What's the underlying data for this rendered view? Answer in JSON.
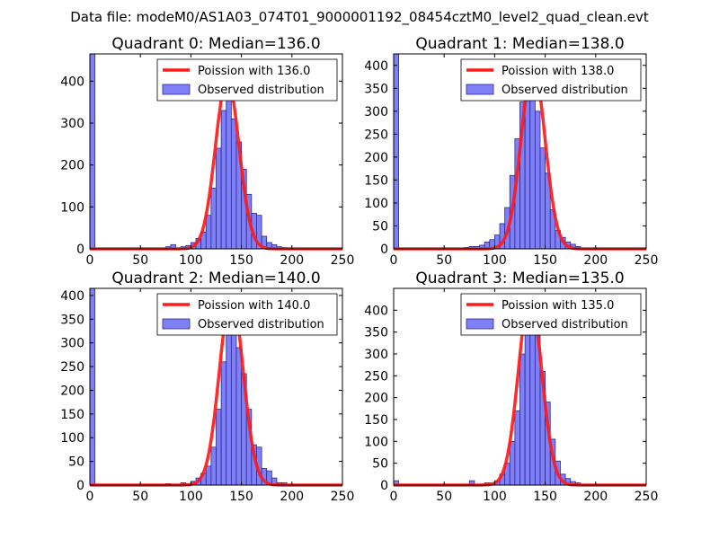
{
  "figure": {
    "suptitle": "Data file: modeM0/AS1A03_074T01_9000001192_08454cztM0_level2_quad_clean.evt"
  },
  "chart_data": [
    {
      "type": "bar",
      "title": "Quadrant 0: Median=136.0",
      "xlim": [
        0,
        250
      ],
      "ylim": [
        0,
        465
      ],
      "xticks": [
        0,
        50,
        100,
        150,
        200,
        250
      ],
      "yticks": [
        0,
        100,
        200,
        300,
        400
      ],
      "bin_width": 5,
      "bins": [
        {
          "x": 0,
          "y": 465
        },
        {
          "x": 75,
          "y": 5
        },
        {
          "x": 80,
          "y": 10
        },
        {
          "x": 90,
          "y": 5
        },
        {
          "x": 95,
          "y": 8
        },
        {
          "x": 100,
          "y": 15
        },
        {
          "x": 105,
          "y": 25
        },
        {
          "x": 110,
          "y": 40
        },
        {
          "x": 115,
          "y": 80
        },
        {
          "x": 120,
          "y": 145
        },
        {
          "x": 125,
          "y": 240
        },
        {
          "x": 130,
          "y": 330
        },
        {
          "x": 135,
          "y": 395
        },
        {
          "x": 140,
          "y": 310
        },
        {
          "x": 145,
          "y": 255
        },
        {
          "x": 150,
          "y": 190
        },
        {
          "x": 155,
          "y": 130
        },
        {
          "x": 160,
          "y": 85
        },
        {
          "x": 165,
          "y": 80
        },
        {
          "x": 170,
          "y": 30
        },
        {
          "x": 175,
          "y": 15
        },
        {
          "x": 180,
          "y": 10
        },
        {
          "x": 185,
          "y": 5
        },
        {
          "x": 190,
          "y": 3
        }
      ],
      "poisson": {
        "mean": 136.0,
        "peak": 405
      },
      "legend": {
        "placement": "top-right",
        "entries": [
          "Poission with 136.0",
          "Observed distribution"
        ]
      }
    },
    {
      "type": "bar",
      "title": "Quadrant 1: Median=138.0",
      "xlim": [
        0,
        250
      ],
      "ylim": [
        0,
        425
      ],
      "xticks": [
        0,
        50,
        100,
        150,
        200,
        250
      ],
      "yticks": [
        0,
        50,
        100,
        150,
        200,
        250,
        300,
        350,
        400
      ],
      "bin_width": 5,
      "bins": [
        {
          "x": 0,
          "y": 425
        },
        {
          "x": 70,
          "y": 3
        },
        {
          "x": 75,
          "y": 5
        },
        {
          "x": 80,
          "y": 5
        },
        {
          "x": 85,
          "y": 8
        },
        {
          "x": 90,
          "y": 15
        },
        {
          "x": 95,
          "y": 20
        },
        {
          "x": 100,
          "y": 30
        },
        {
          "x": 105,
          "y": 55
        },
        {
          "x": 110,
          "y": 90
        },
        {
          "x": 115,
          "y": 160
        },
        {
          "x": 120,
          "y": 240
        },
        {
          "x": 125,
          "y": 320
        },
        {
          "x": 130,
          "y": 390
        },
        {
          "x": 135,
          "y": 380
        },
        {
          "x": 140,
          "y": 300
        },
        {
          "x": 145,
          "y": 220
        },
        {
          "x": 150,
          "y": 165
        },
        {
          "x": 155,
          "y": 85
        },
        {
          "x": 160,
          "y": 40
        },
        {
          "x": 165,
          "y": 25
        },
        {
          "x": 170,
          "y": 15
        },
        {
          "x": 175,
          "y": 10
        },
        {
          "x": 180,
          "y": 5
        }
      ],
      "poisson": {
        "mean": 138.0,
        "peak": 400
      },
      "legend": {
        "placement": "top-right",
        "entries": [
          "Poission with 138.0",
          "Observed distribution"
        ]
      }
    },
    {
      "type": "bar",
      "title": "Quadrant 2: Median=140.0",
      "xlim": [
        0,
        250
      ],
      "ylim": [
        0,
        415
      ],
      "xticks": [
        0,
        50,
        100,
        150,
        200,
        250
      ],
      "yticks": [
        0,
        50,
        100,
        150,
        200,
        250,
        300,
        350,
        400
      ],
      "bin_width": 5,
      "bins": [
        {
          "x": 0,
          "y": 415
        },
        {
          "x": 75,
          "y": 3
        },
        {
          "x": 90,
          "y": 5
        },
        {
          "x": 100,
          "y": 8
        },
        {
          "x": 105,
          "y": 15
        },
        {
          "x": 110,
          "y": 25
        },
        {
          "x": 115,
          "y": 40
        },
        {
          "x": 120,
          "y": 80
        },
        {
          "x": 125,
          "y": 160
        },
        {
          "x": 130,
          "y": 260
        },
        {
          "x": 135,
          "y": 370
        },
        {
          "x": 140,
          "y": 390
        },
        {
          "x": 145,
          "y": 290
        },
        {
          "x": 150,
          "y": 235
        },
        {
          "x": 155,
          "y": 160
        },
        {
          "x": 160,
          "y": 85
        },
        {
          "x": 165,
          "y": 80
        },
        {
          "x": 170,
          "y": 35
        },
        {
          "x": 175,
          "y": 30
        },
        {
          "x": 180,
          "y": 15
        },
        {
          "x": 185,
          "y": 5
        },
        {
          "x": 190,
          "y": 5
        }
      ],
      "poisson": {
        "mean": 140.0,
        "peak": 397
      },
      "legend": {
        "placement": "top-right",
        "entries": [
          "Poission with 140.0",
          "Observed distribution"
        ]
      }
    },
    {
      "type": "bar",
      "title": "Quadrant 3: Median=135.0",
      "xlim": [
        0,
        250
      ],
      "ylim": [
        0,
        450
      ],
      "xticks": [
        0,
        50,
        100,
        150,
        200,
        250
      ],
      "yticks": [
        0,
        50,
        100,
        150,
        200,
        250,
        300,
        350,
        400
      ],
      "bin_width": 5,
      "bins": [
        {
          "x": 0,
          "y": 10
        },
        {
          "x": 75,
          "y": 10
        },
        {
          "x": 90,
          "y": 5
        },
        {
          "x": 95,
          "y": 5
        },
        {
          "x": 100,
          "y": 10
        },
        {
          "x": 105,
          "y": 25
        },
        {
          "x": 110,
          "y": 50
        },
        {
          "x": 115,
          "y": 100
        },
        {
          "x": 120,
          "y": 170
        },
        {
          "x": 125,
          "y": 300
        },
        {
          "x": 130,
          "y": 400
        },
        {
          "x": 135,
          "y": 430
        },
        {
          "x": 140,
          "y": 355
        },
        {
          "x": 145,
          "y": 260
        },
        {
          "x": 150,
          "y": 190
        },
        {
          "x": 155,
          "y": 105
        },
        {
          "x": 160,
          "y": 55
        },
        {
          "x": 165,
          "y": 25
        },
        {
          "x": 170,
          "y": 15
        },
        {
          "x": 175,
          "y": 8
        },
        {
          "x": 180,
          "y": 5
        }
      ],
      "poisson": {
        "mean": 135.0,
        "peak": 430
      },
      "legend": {
        "placement": "top-right",
        "entries": [
          "Poission with 135.0",
          "Observed distribution"
        ]
      }
    }
  ],
  "colors": {
    "bar_fill": "#7f7ff7",
    "bar_edge": "#2a2a8a",
    "poisson_line": "#ff1a1a"
  }
}
